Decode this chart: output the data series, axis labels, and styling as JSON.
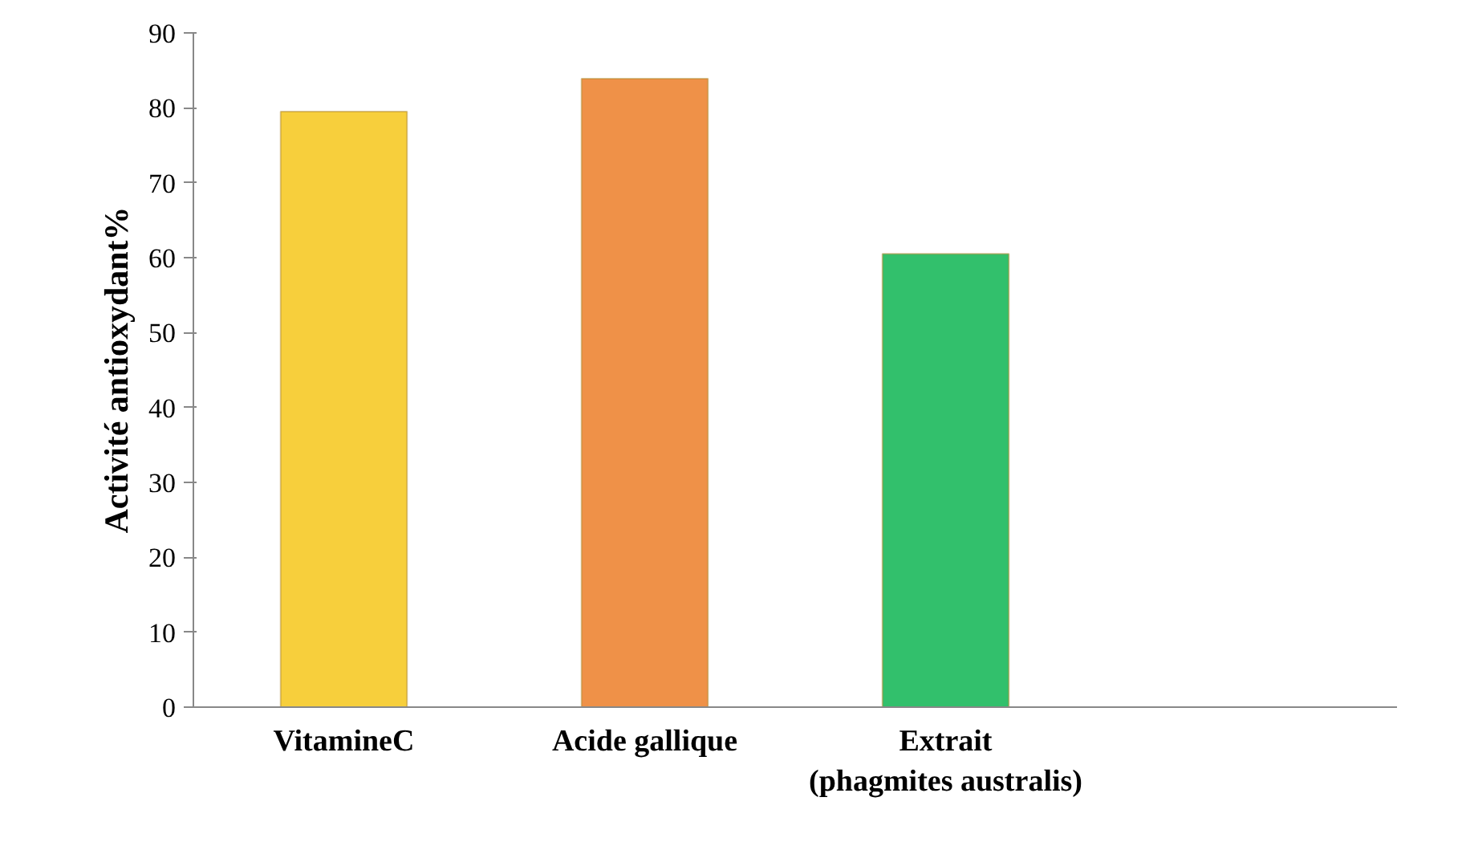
{
  "chart_data": {
    "type": "bar",
    "ylabel": "Activité antioxydant%",
    "categories": [
      "VitamineC",
      "Acide gallique",
      "Extrait\n(phagmites australis)",
      null
    ],
    "values": [
      79.5,
      83.9,
      60.5,
      null
    ],
    "colors": [
      "#f7cf3c",
      "#ef9148",
      "#32c06c",
      "#32c06c"
    ],
    "ylim": [
      0,
      90
    ],
    "yticks": [
      0,
      10,
      20,
      30,
      40,
      50,
      60,
      70,
      80,
      90
    ],
    "grid": false
  }
}
